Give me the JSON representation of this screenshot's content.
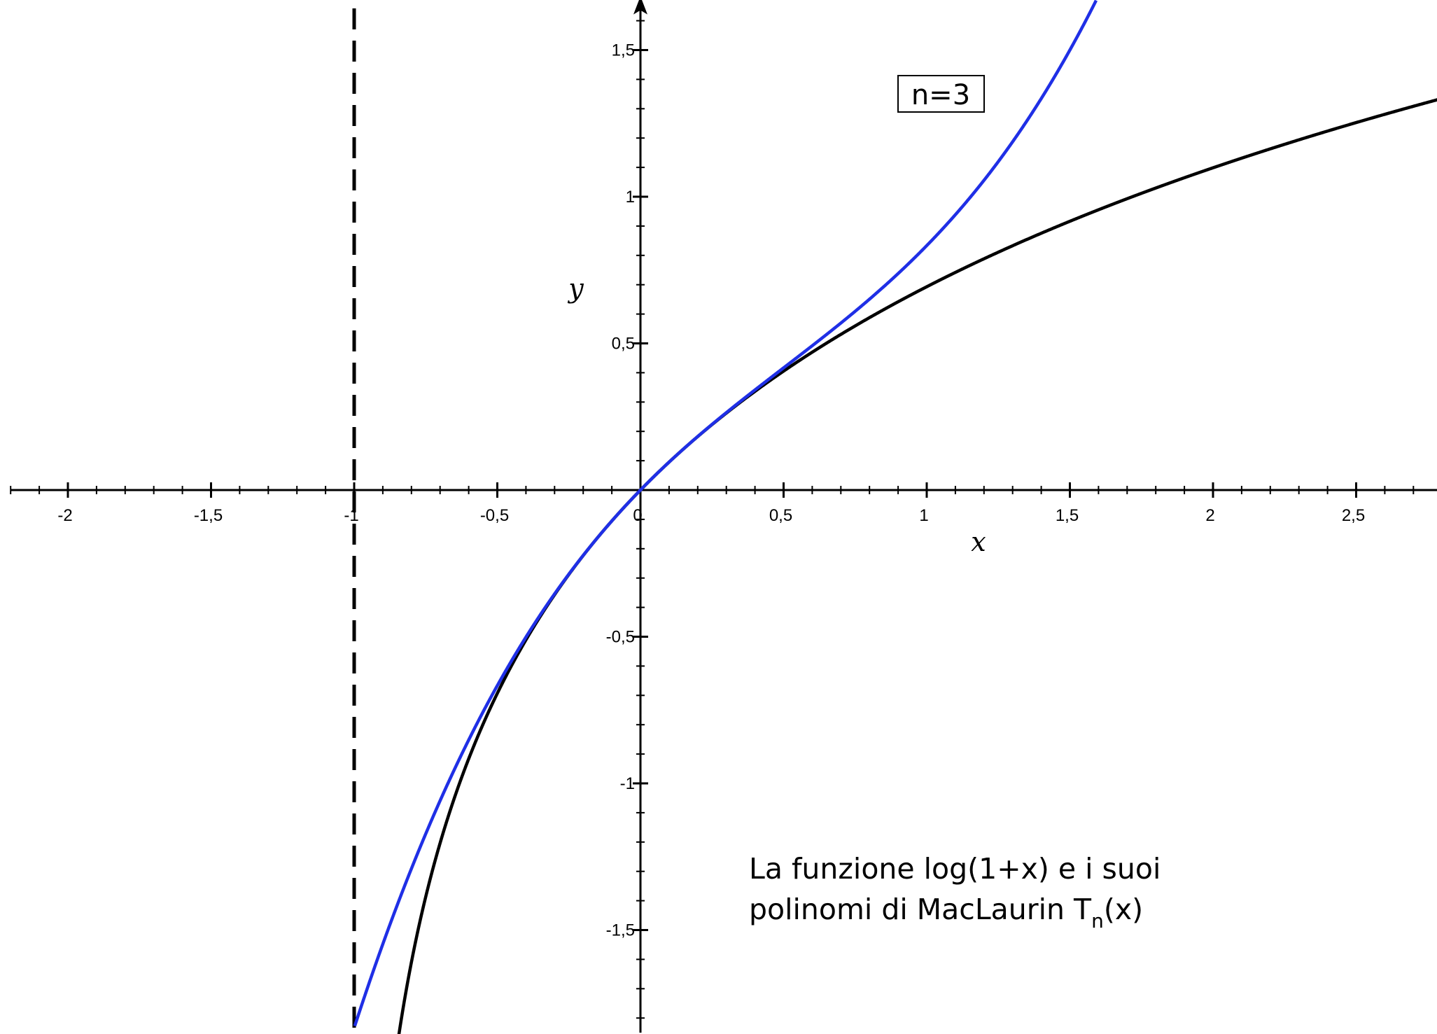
{
  "chart_data": {
    "type": "line",
    "title": "",
    "xlabel": "x",
    "ylabel": "y",
    "xlim": [
      -2.2,
      2.8
    ],
    "ylim": [
      -1.85,
      1.65
    ],
    "x_ticks": [
      -2,
      -1.5,
      -1,
      -0.5,
      0,
      0.5,
      1,
      1.5,
      2,
      2.5
    ],
    "x_tick_labels": [
      "-2",
      "-1,5",
      "-1",
      "-0,5",
      "0",
      "0,5",
      "1",
      "1,5",
      "2",
      "2,5"
    ],
    "y_ticks": [
      -1.5,
      -1,
      -0.5,
      0.5,
      1,
      1.5
    ],
    "y_tick_labels": [
      "-1,5",
      "-1",
      "-0,5",
      "0,5",
      "1",
      "1,5"
    ],
    "asymptote_x": -1,
    "series": [
      {
        "function": "log(1+x)",
        "color": "#000000",
        "style": "solid"
      },
      {
        "function": "x - x^2/2 + x^3/3",
        "color": "#1f2fe6",
        "style": "solid"
      }
    ],
    "annotation_box": "n=3",
    "caption_line1": "La funzione log(1+x) e i suoi",
    "caption_line2_prefix": "polinomi di MacLaurin T",
    "caption_line2_sub": "n",
    "caption_line2_suffix": "(x)"
  }
}
